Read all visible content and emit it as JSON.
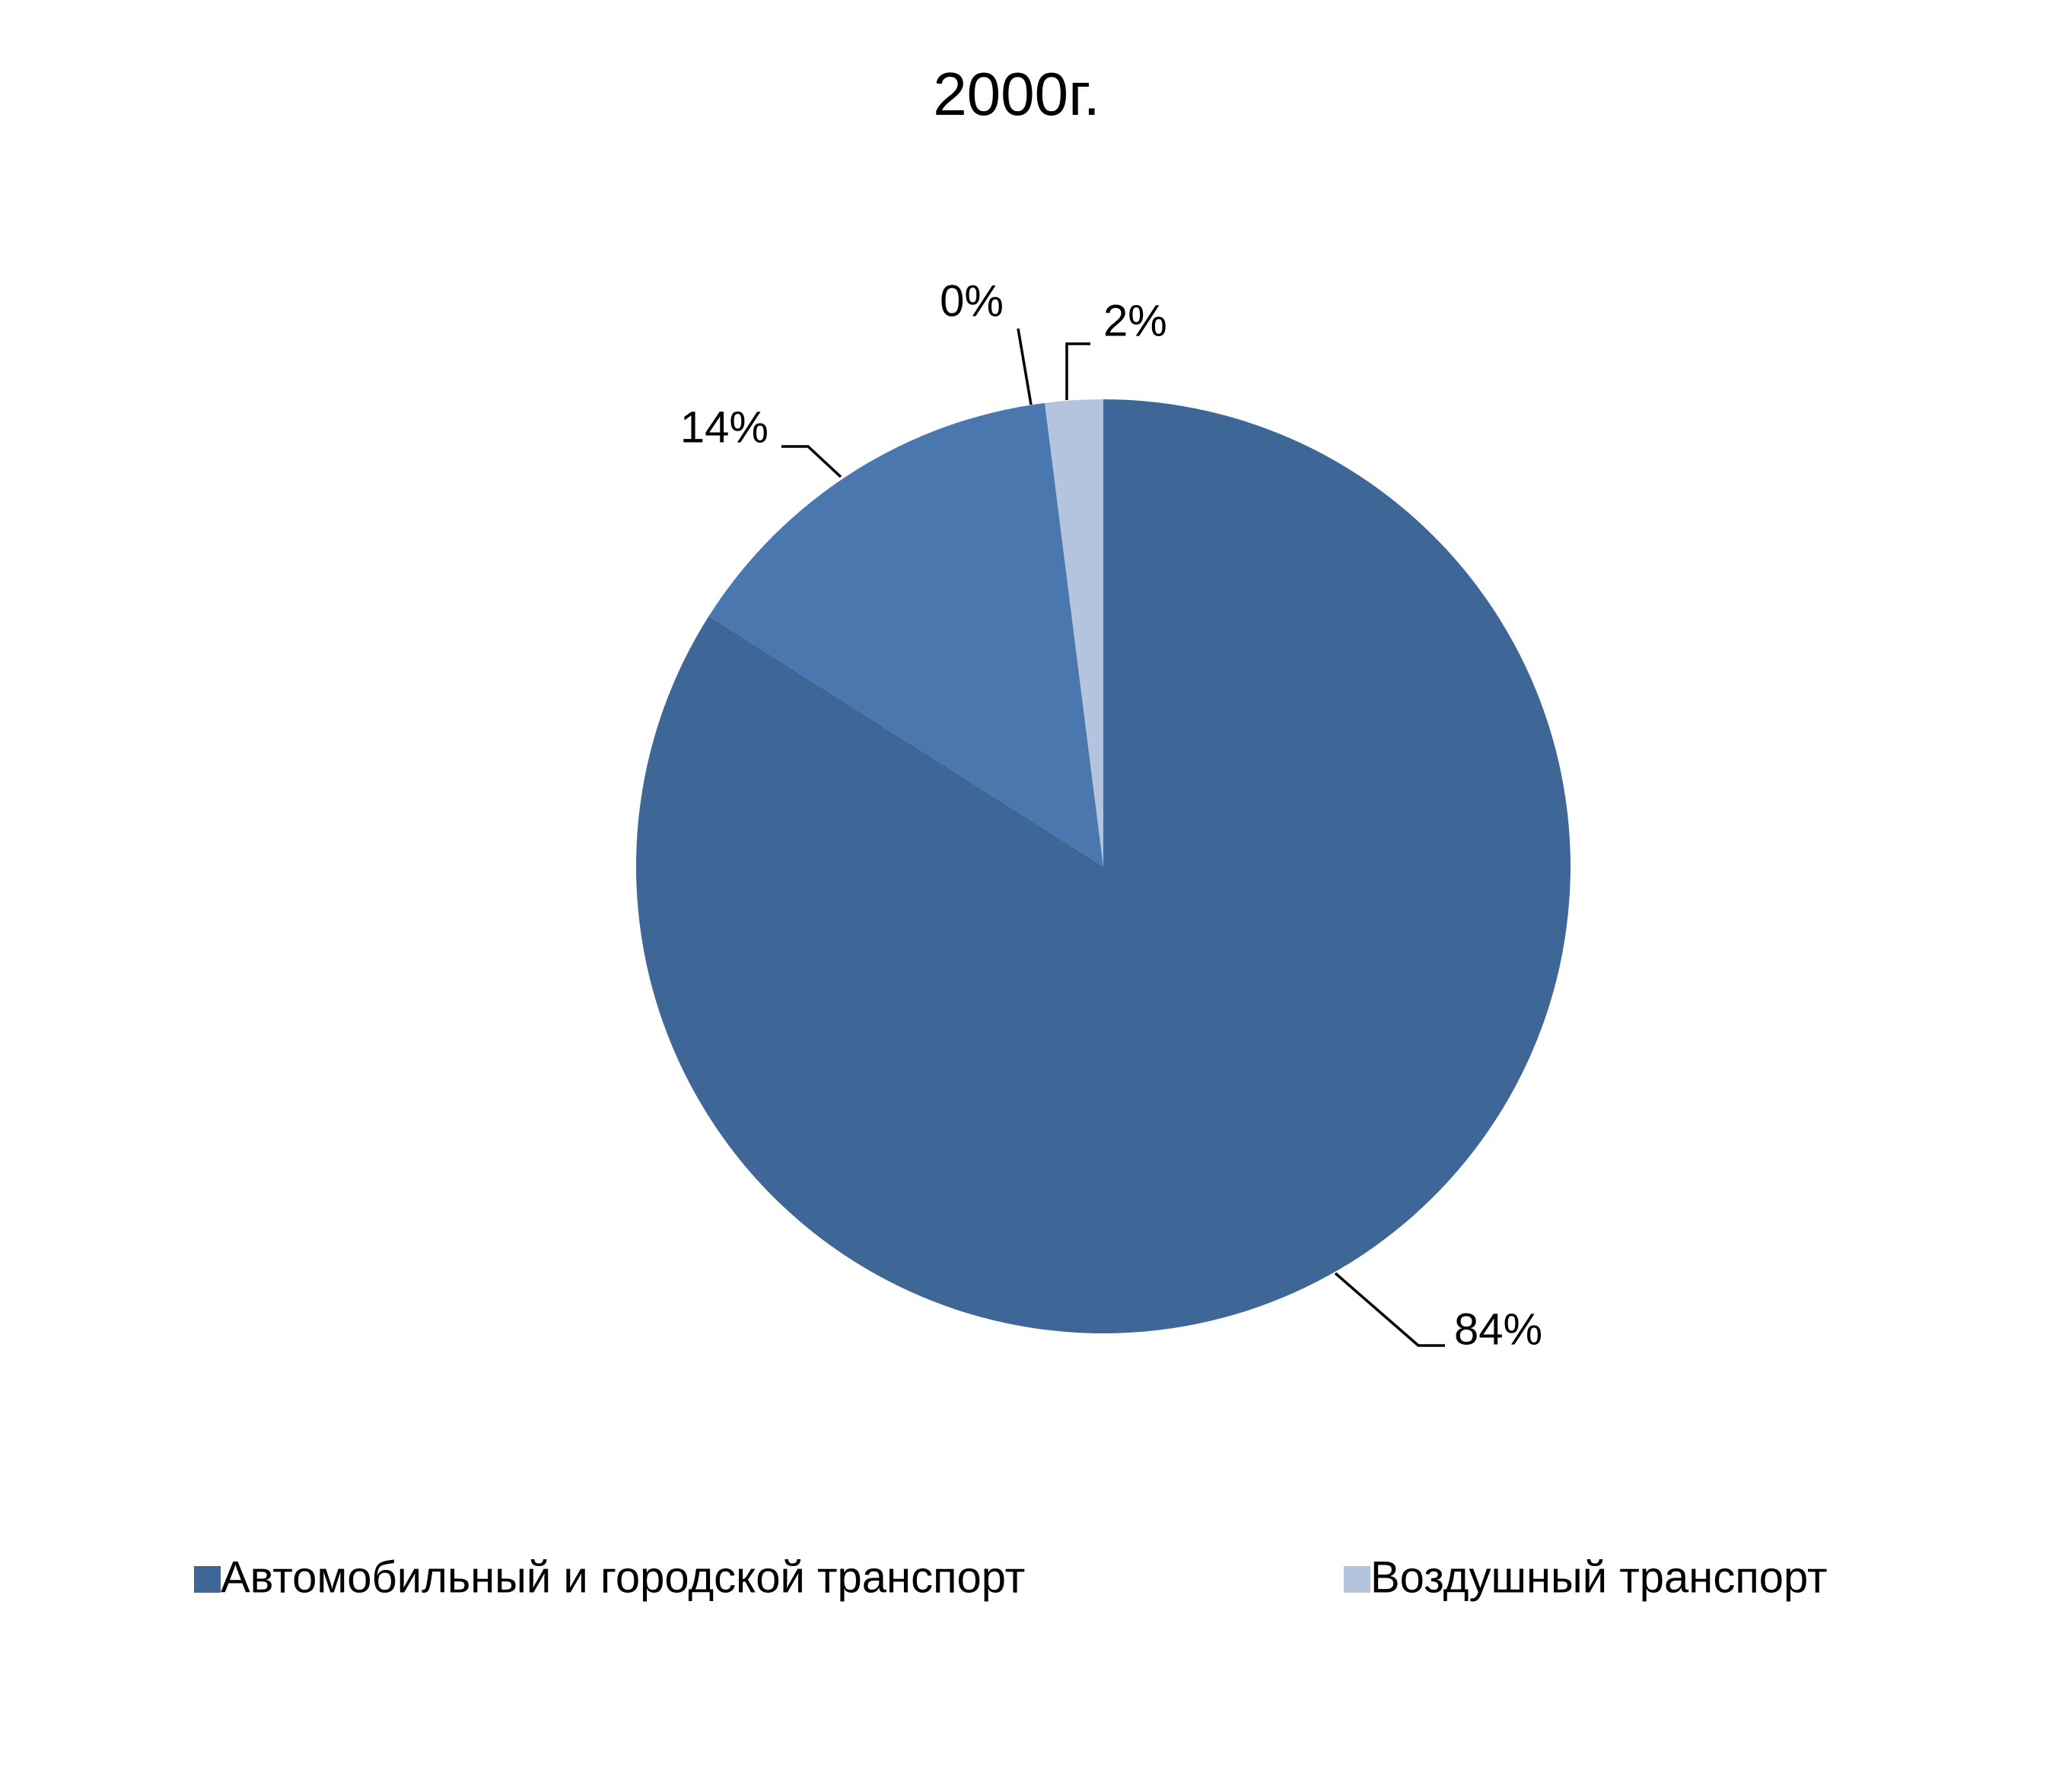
{
  "chart_data": {
    "type": "pie",
    "title": "2000г.",
    "categories": [
      "Автомобильный и городской транспорт",
      null,
      null,
      "Воздушный транспорт"
    ],
    "values": [
      84,
      14,
      0,
      2
    ],
    "value_labels": [
      "84%",
      "14%",
      "0%",
      "2%"
    ],
    "colors": [
      "#3e6696",
      "#4a78ae",
      "#5b87bd",
      "#b4c3de"
    ],
    "start": "top",
    "direction": "clockwise"
  }
}
